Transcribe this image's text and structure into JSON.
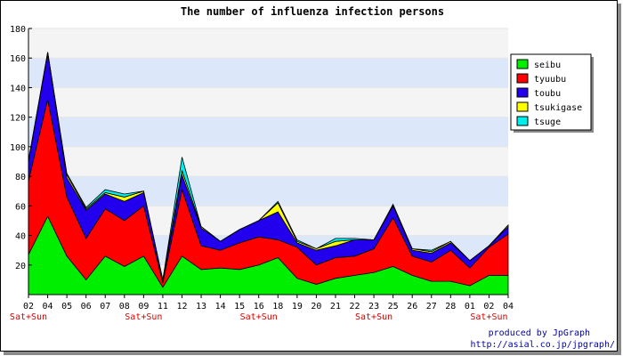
{
  "chart_data": {
    "type": "area",
    "stacked": true,
    "title": "The number of influenza infection persons",
    "xlabel": "",
    "ylabel": "",
    "ylim": [
      0,
      180
    ],
    "yticks": [
      20,
      40,
      60,
      80,
      100,
      120,
      140,
      160,
      180
    ],
    "grid": true,
    "legend_position": "right",
    "categories": [
      "02",
      "04",
      "05",
      "06",
      "07",
      "08",
      "09",
      "11",
      "12",
      "13",
      "14",
      "15",
      "16",
      "18",
      "19",
      "20",
      "21",
      "22",
      "23",
      "25",
      "26",
      "27",
      "28",
      "01",
      "02",
      "04"
    ],
    "weekend_labels": [
      {
        "index": 0,
        "text": "Sat+Sun"
      },
      {
        "index": 6,
        "text": "Sat+Sun"
      },
      {
        "index": 12,
        "text": "Sat+Sun"
      },
      {
        "index": 18,
        "text": "Sat+Sun"
      },
      {
        "index": 24,
        "text": "Sat+Sun"
      }
    ],
    "series": [
      {
        "name": "seibu",
        "color": "#00ee00",
        "values": [
          27,
          53,
          26,
          10,
          26,
          19,
          26,
          5,
          26,
          17,
          18,
          17,
          20,
          25,
          11,
          7,
          11,
          13,
          15,
          19,
          13,
          9,
          9,
          6,
          13,
          13
        ]
      },
      {
        "name": "tyuubu",
        "color": "#ff0000",
        "values": [
          50,
          79,
          40,
          28,
          32,
          31,
          34,
          3,
          45,
          16,
          12,
          18,
          19,
          12,
          21,
          13,
          14,
          13,
          16,
          33,
          13,
          13,
          21,
          12,
          19,
          28
        ]
      },
      {
        "name": "toubu",
        "color": "#2200ee",
        "values": [
          13,
          31,
          13,
          19,
          10,
          13,
          9,
          2,
          10,
          12,
          6,
          9,
          11,
          19,
          3,
          10,
          8,
          11,
          6,
          8,
          4,
          6,
          5,
          5,
          1,
          5
        ]
      },
      {
        "name": "tsukigase",
        "color": "#ffff00",
        "values": [
          0,
          1,
          2,
          1,
          1,
          3,
          1,
          0,
          3,
          1,
          0,
          0,
          0,
          6,
          1,
          1,
          3,
          0,
          0,
          1,
          1,
          1,
          1,
          0,
          0,
          1
        ]
      },
      {
        "name": "tsuge",
        "color": "#00eeee",
        "values": [
          1,
          0,
          1,
          1,
          2,
          2,
          0,
          0,
          9,
          0,
          0,
          0,
          0,
          1,
          1,
          0,
          2,
          1,
          0,
          0,
          0,
          1,
          0,
          0,
          0,
          0
        ]
      }
    ]
  },
  "footer": {
    "credit_line1": "produced by JpGraph",
    "credit_line2": "http://asial.co.jp/jpgraph/"
  },
  "colors": {
    "band_light": "#f4f4f4",
    "band_blue": "#dde7fa",
    "weekend_label": "#dd0000",
    "credit": "#0000aa"
  }
}
